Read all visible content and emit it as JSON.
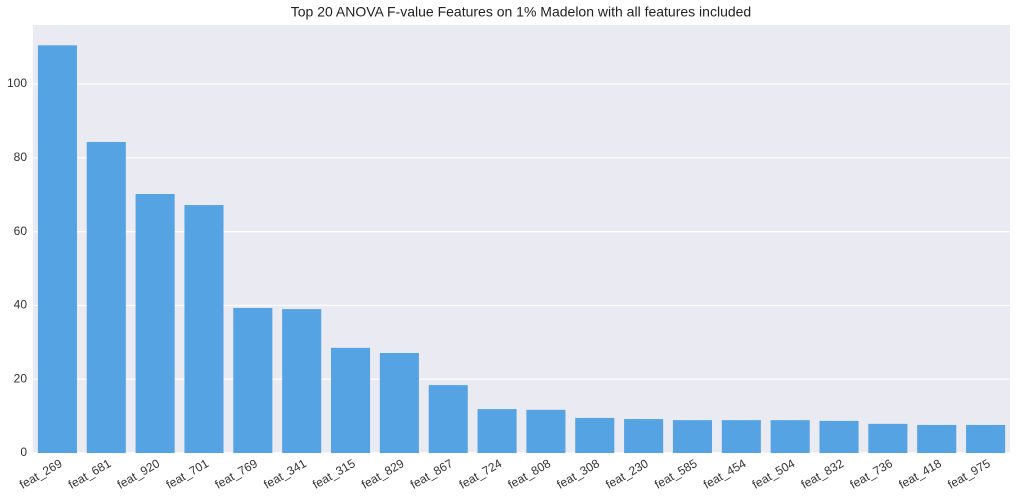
{
  "chart_data": {
    "type": "bar",
    "title": "Top 20 ANOVA F-value Features on 1% Madelon with all features included",
    "categories": [
      "feat_269",
      "feat_681",
      "feat_920",
      "feat_701",
      "feat_769",
      "feat_341",
      "feat_315",
      "feat_829",
      "feat_867",
      "feat_724",
      "feat_808",
      "feat_308",
      "feat_230",
      "feat_585",
      "feat_454",
      "feat_504",
      "feat_832",
      "feat_736",
      "feat_418",
      "feat_975"
    ],
    "values": [
      110.5,
      84.3,
      70.2,
      67.2,
      39.3,
      39.0,
      28.5,
      27.1,
      18.4,
      11.9,
      11.7,
      9.5,
      9.2,
      8.9,
      8.9,
      8.9,
      8.7,
      7.9,
      7.6,
      7.6
    ],
    "color": "#56a3e3",
    "ylim": [
      0,
      116
    ],
    "yticks": [
      0,
      20,
      40,
      60,
      80,
      100
    ],
    "grid": true
  }
}
